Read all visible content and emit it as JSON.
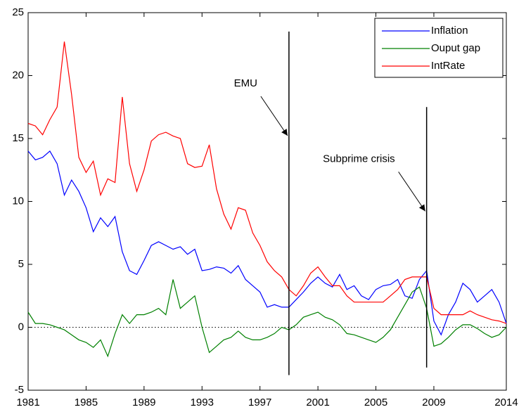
{
  "chart_data": {
    "type": "line",
    "x": [
      1981,
      1981.5,
      1982,
      1982.5,
      1983,
      1983.5,
      1984,
      1984.5,
      1985,
      1985.5,
      1986,
      1986.5,
      1987,
      1987.5,
      1988,
      1988.5,
      1989,
      1989.5,
      1990,
      1990.5,
      1991,
      1991.5,
      1992,
      1992.5,
      1993,
      1993.5,
      1994,
      1994.5,
      1995,
      1995.5,
      1996,
      1996.5,
      1997,
      1997.5,
      1998,
      1998.5,
      1999,
      1999.5,
      2000,
      2000.5,
      2001,
      2001.5,
      2002,
      2002.5,
      2003,
      2003.5,
      2004,
      2004.5,
      2005,
      2005.5,
      2006,
      2006.5,
      2007,
      2007.5,
      2008,
      2008.5,
      2009,
      2009.5,
      2010,
      2010.5,
      2011,
      2011.5,
      2012,
      2012.5,
      2013,
      2013.5,
      2014
    ],
    "series": [
      {
        "name": "Inflation",
        "color": "#0000ff",
        "values": [
          14,
          13.3,
          13.5,
          14,
          13,
          10.5,
          11.7,
          10.8,
          9.5,
          7.6,
          8.7,
          8,
          8.8,
          6,
          4.5,
          4.2,
          5.3,
          6.5,
          6.8,
          6.5,
          6.2,
          6.4,
          5.8,
          6.2,
          4.5,
          4.6,
          4.8,
          4.7,
          4.3,
          4.9,
          3.8,
          3.3,
          2.8,
          1.6,
          1.8,
          1.6,
          1.6,
          2.2,
          2.8,
          3.5,
          4,
          3.5,
          3.2,
          4.2,
          3,
          3.3,
          2.5,
          2.2,
          3,
          3.3,
          3.4,
          3.8,
          2.5,
          2.3,
          3.8,
          4.5,
          0.5,
          -0.6,
          1,
          2,
          3.5,
          3,
          2,
          2.5,
          3,
          2,
          0.3
        ]
      },
      {
        "name": "Ouput gap",
        "color": "#008000",
        "values": [
          1.2,
          0.3,
          0.3,
          0.2,
          0,
          -0.2,
          -0.6,
          -1,
          -1.2,
          -1.6,
          -1,
          -2.3,
          -0.5,
          1,
          0.3,
          1,
          1,
          1.2,
          1.5,
          1,
          3.8,
          1.5,
          2,
          2.5,
          0,
          -2,
          -1.5,
          -1,
          -0.8,
          -0.3,
          -0.8,
          -1,
          -1,
          -0.8,
          -0.5,
          0,
          -0.2,
          0.2,
          0.8,
          1,
          1.2,
          0.8,
          0.6,
          0.2,
          -0.5,
          -0.6,
          -0.8,
          -1,
          -1.2,
          -0.8,
          -0.2,
          0.8,
          1.8,
          2.8,
          3.2,
          1.5,
          -1.5,
          -1.3,
          -0.8,
          -0.2,
          0.2,
          0.2,
          -0.1,
          -0.5,
          -0.8,
          -0.6,
          0
        ]
      },
      {
        "name": "IntRate",
        "color": "#ff0000",
        "values": [
          16.2,
          16,
          15.3,
          16.5,
          17.5,
          22.7,
          18.5,
          13.5,
          12.3,
          13.2,
          10.5,
          11.8,
          11.5,
          18.3,
          13,
          10.8,
          12.5,
          14.8,
          15.3,
          15.5,
          15.2,
          15,
          13,
          12.7,
          12.8,
          14.5,
          11,
          9,
          7.8,
          9.5,
          9.3,
          7.5,
          6.5,
          5.2,
          4.5,
          4,
          3,
          2.5,
          3.3,
          4.3,
          4.8,
          4,
          3.3,
          3.3,
          2.5,
          2,
          2,
          2,
          2,
          2,
          2.5,
          3,
          3.8,
          4,
          4,
          4,
          1.5,
          1,
          1,
          1,
          1,
          1.3,
          1,
          0.8,
          0.6,
          0.5,
          0.3
        ]
      }
    ],
    "xlim": [
      1981,
      2014
    ],
    "xticks": [
      1981,
      1985,
      1989,
      1993,
      1997,
      2001,
      2005,
      2009,
      2014
    ],
    "ylim": [
      -5,
      25
    ],
    "yticks": [
      -5,
      0,
      5,
      10,
      15,
      20,
      25
    ],
    "reference_line": 0,
    "vertical_lines": [
      {
        "x": 1999,
        "y": [
          -3.8,
          23.5
        ]
      },
      {
        "x": 2008.5,
        "y": [
          -3.2,
          17.5
        ]
      }
    ],
    "annotations": [
      {
        "text": "EMU",
        "x": 1999,
        "y": 15
      },
      {
        "text": "Subprime crisis",
        "x": 2008.5,
        "y": 9
      }
    ],
    "legend": "upper right"
  }
}
